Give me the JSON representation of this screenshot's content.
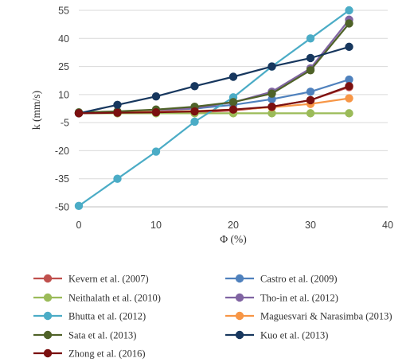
{
  "chart_data": {
    "type": "line",
    "title": "",
    "xlabel": "Φ (%)",
    "ylabel": "k (mm/s)",
    "xlim": [
      0,
      40
    ],
    "ylim": [
      -50,
      55
    ],
    "x_ticks": [
      "0",
      "10",
      "20",
      "30",
      "40"
    ],
    "y_ticks": [
      "55",
      "40",
      "25",
      "10",
      "-5",
      "-20",
      "-35",
      "-50"
    ],
    "grid": "horizontal",
    "legend_position": "bottom",
    "series": [
      {
        "name": "Kevern et al. (2007)",
        "color": "#c0504d",
        "x": [
          0,
          5,
          10,
          15,
          20,
          25,
          30,
          35
        ],
        "y": [
          0,
          0,
          0.2,
          0.5,
          1.5,
          3.5,
          7.0,
          14.0
        ]
      },
      {
        "name": "Castro et al. (2009)",
        "color": "#4f81bd",
        "x": [
          0,
          5,
          10,
          15,
          20,
          25,
          30,
          35
        ],
        "y": [
          0.3,
          0.8,
          1.5,
          2.5,
          4.5,
          7.5,
          11.5,
          18.0
        ]
      },
      {
        "name": "Neithalath et al. (2010)",
        "color": "#9bbb59",
        "x": [
          0,
          5,
          10,
          15,
          20,
          25,
          30,
          35
        ],
        "y": [
          0,
          0,
          0,
          0,
          0,
          0,
          0,
          0
        ]
      },
      {
        "name": "Tho-in et al. (2012)",
        "color": "#8064a2",
        "x": [
          0,
          5,
          10,
          15,
          20,
          25,
          30,
          35
        ],
        "y": [
          0.3,
          0.6,
          1.2,
          2.8,
          5.8,
          11.5,
          24.0,
          50.0
        ]
      },
      {
        "name": "Bhutta et al. (2012)",
        "color": "#4bacc6",
        "x": [
          0,
          5,
          10,
          15,
          20,
          25,
          30,
          35
        ],
        "y": [
          -49.5,
          -35.0,
          -20.5,
          -4.5,
          8.5,
          25.0,
          40.0,
          55.0
        ]
      },
      {
        "name": "Maguesvari & Narasimba (2013)",
        "color": "#f79646",
        "x": [
          0,
          5,
          10,
          15,
          20,
          25,
          30,
          35
        ],
        "y": [
          0.3,
          0.5,
          0.8,
          1.2,
          2.0,
          3.2,
          5.0,
          8.0
        ]
      },
      {
        "name": "Sata et al. (2013)",
        "color": "#4f6228",
        "x": [
          0,
          5,
          10,
          15,
          20,
          25,
          30,
          35
        ],
        "y": [
          0.5,
          1.0,
          2.0,
          3.5,
          6.0,
          10.5,
          23.0,
          48.0
        ]
      },
      {
        "name": "Kuo et al. (2013)",
        "color": "#17375e",
        "x": [
          0,
          5,
          10,
          15,
          20,
          25,
          30,
          35
        ],
        "y": [
          0,
          4.5,
          9.0,
          14.5,
          19.5,
          25.0,
          29.5,
          35.5
        ]
      },
      {
        "name": "Zhong et al. (2016)",
        "color": "#7b1010",
        "x": [
          0,
          5,
          10,
          15,
          20,
          25,
          30,
          35
        ],
        "y": [
          0,
          0.3,
          0.5,
          1.0,
          2.0,
          3.5,
          7.0,
          14.5
        ]
      }
    ]
  }
}
